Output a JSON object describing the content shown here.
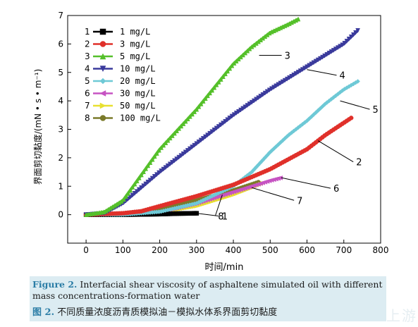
{
  "chart_data": {
    "type": "scatter",
    "xlabel": "时间/min",
    "ylabel": "界面剪切黏度/(mN • s • m⁻¹)",
    "xlim": [
      -50,
      800
    ],
    "ylim": [
      -1,
      7
    ],
    "xticks": [
      0,
      100,
      200,
      300,
      400,
      500,
      600,
      700,
      800
    ],
    "yticks": [
      0,
      1,
      2,
      3,
      4,
      5,
      6,
      7
    ],
    "legend_position": "top-left",
    "series": [
      {
        "id": "1",
        "name": "1 mg/L",
        "color": "#000000",
        "marker": "square",
        "points": [
          [
            0,
            0
          ],
          [
            100,
            0
          ],
          [
            200,
            0.02
          ],
          [
            250,
            0.04
          ],
          [
            300,
            0.05
          ]
        ]
      },
      {
        "id": "2",
        "name": "3 mg/L",
        "color": "#e0302a",
        "marker": "circle",
        "points": [
          [
            0,
            0
          ],
          [
            100,
            0.05
          ],
          [
            150,
            0.12
          ],
          [
            200,
            0.3
          ],
          [
            300,
            0.65
          ],
          [
            400,
            1.05
          ],
          [
            500,
            1.6
          ],
          [
            600,
            2.3
          ],
          [
            650,
            2.8
          ],
          [
            720,
            3.4
          ]
        ]
      },
      {
        "id": "3",
        "name": "5 mg/L",
        "color": "#55c02a",
        "marker": "triangle-up",
        "points": [
          [
            0,
            0
          ],
          [
            50,
            0.1
          ],
          [
            100,
            0.5
          ],
          [
            150,
            1.4
          ],
          [
            200,
            2.3
          ],
          [
            250,
            3.0
          ],
          [
            300,
            3.7
          ],
          [
            350,
            4.5
          ],
          [
            400,
            5.3
          ],
          [
            450,
            5.9
          ],
          [
            500,
            6.4
          ],
          [
            550,
            6.7
          ],
          [
            580,
            6.9
          ]
        ]
      },
      {
        "id": "4",
        "name": "10 mg/L",
        "color": "#3a3a9c",
        "marker": "triangle-down",
        "points": [
          [
            0,
            0
          ],
          [
            50,
            0.05
          ],
          [
            100,
            0.4
          ],
          [
            200,
            1.5
          ],
          [
            300,
            2.5
          ],
          [
            400,
            3.5
          ],
          [
            500,
            4.4
          ],
          [
            600,
            5.2
          ],
          [
            700,
            6.0
          ],
          [
            740,
            6.5
          ]
        ]
      },
      {
        "id": "5",
        "name": "20 mg/L",
        "color": "#6ec9d6",
        "marker": "diamond",
        "points": [
          [
            0,
            0
          ],
          [
            100,
            0
          ],
          [
            200,
            0.1
          ],
          [
            300,
            0.4
          ],
          [
            400,
            1.0
          ],
          [
            450,
            1.5
          ],
          [
            500,
            2.2
          ],
          [
            550,
            2.8
          ],
          [
            600,
            3.3
          ],
          [
            650,
            3.9
          ],
          [
            700,
            4.4
          ],
          [
            740,
            4.7
          ]
        ]
      },
      {
        "id": "6",
        "name": "30 mg/L",
        "color": "#c653c2",
        "marker": "triangle-left",
        "points": [
          [
            0,
            0
          ],
          [
            100,
            0
          ],
          [
            200,
            0.1
          ],
          [
            300,
            0.4
          ],
          [
            400,
            0.8
          ],
          [
            500,
            1.2
          ],
          [
            530,
            1.3
          ]
        ]
      },
      {
        "id": "7",
        "name": "50 mg/L",
        "color": "#e8e030",
        "marker": "triangle-right",
        "points": [
          [
            0,
            0
          ],
          [
            100,
            0
          ],
          [
            200,
            0.08
          ],
          [
            300,
            0.3
          ],
          [
            400,
            0.7
          ],
          [
            450,
            0.95
          ],
          [
            480,
            1.1
          ]
        ]
      },
      {
        "id": "8",
        "name": "100 mg/L",
        "color": "#7a7a2a",
        "marker": "circle",
        "points": [
          [
            0,
            0
          ],
          [
            100,
            0
          ],
          [
            150,
            0.05
          ],
          [
            200,
            0.2
          ],
          [
            300,
            0.5
          ],
          [
            400,
            0.85
          ],
          [
            470,
            1.15
          ]
        ]
      }
    ],
    "annotations": [
      {
        "label": "1",
        "at": [
          300,
          0.05
        ]
      },
      {
        "label": "2",
        "at": [
          630,
          2.6
        ]
      },
      {
        "label": "3",
        "at": [
          470,
          5.6
        ]
      },
      {
        "label": "4",
        "at": [
          600,
          5.1
        ]
      },
      {
        "label": "5",
        "at": [
          690,
          4.0
        ]
      },
      {
        "label": "6",
        "at": [
          530,
          1.3
        ]
      },
      {
        "label": "7",
        "at": [
          450,
          0.95
        ]
      },
      {
        "label": "8",
        "at": [
          370,
          0.7
        ]
      }
    ]
  },
  "caption": {
    "fig_label_en": "Figure 2.",
    "text_en_line1": " Interfacial shear viscosity of asphaltene simulated oil with different",
    "text_en_line2": "mass concentrations-formation water",
    "fig_label_cn": "图 2.",
    "text_cn": " 不同质量浓度沥青质模拟油－模拟水体系界面剪切黏度"
  },
  "watermark": "上游"
}
